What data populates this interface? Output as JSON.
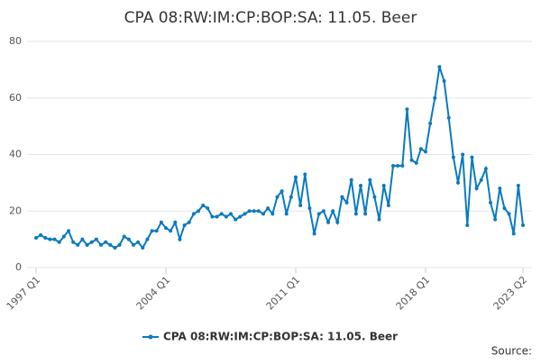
{
  "chart_data": {
    "type": "line",
    "title": "CPA 08:RW:IM:CP:BOP:SA: 11.05. Beer",
    "source": "Source:",
    "categories": [
      "1997 Q1",
      null,
      null,
      null,
      null,
      null,
      null,
      null,
      null,
      null,
      null,
      null,
      null,
      null,
      null,
      null,
      null,
      null,
      null,
      null,
      null,
      null,
      null,
      null,
      null,
      null,
      null,
      null,
      "2004 Q1",
      null,
      null,
      null,
      null,
      null,
      null,
      null,
      null,
      null,
      null,
      null,
      null,
      null,
      null,
      null,
      null,
      null,
      null,
      null,
      null,
      null,
      null,
      null,
      null,
      null,
      null,
      null,
      "2011 Q1",
      null,
      null,
      null,
      null,
      null,
      null,
      null,
      null,
      null,
      null,
      null,
      null,
      null,
      null,
      null,
      null,
      null,
      null,
      null,
      null,
      null,
      null,
      null,
      null,
      null,
      null,
      null,
      "2018 Q1",
      null,
      null,
      null,
      null,
      null,
      null,
      null,
      null,
      null,
      null,
      null,
      null,
      null,
      null,
      null,
      null,
      null,
      null,
      null,
      null,
      "2023 Q2"
    ],
    "series": [
      {
        "name": "CPA 08:RW:IM:CP:BOP:SA: 11.05. Beer",
        "color": "#0a7abf",
        "values": [
          10.5,
          11.5,
          10.5,
          10,
          10,
          9,
          11,
          13,
          9,
          8,
          10,
          8,
          9,
          10,
          8,
          9,
          8,
          7,
          8,
          11,
          10,
          8,
          9,
          7,
          10,
          13,
          13,
          16,
          14,
          13,
          16,
          10,
          15,
          16,
          19,
          20,
          22,
          21,
          18,
          18,
          19,
          18,
          19,
          17,
          18,
          19,
          20,
          20,
          20,
          19,
          21,
          19,
          25,
          27,
          19,
          25,
          32,
          22,
          33,
          21,
          12,
          19,
          20,
          16,
          20,
          16,
          25,
          23,
          31,
          19,
          29,
          19,
          31,
          25,
          17,
          29,
          22,
          36,
          36,
          36,
          56,
          38,
          37,
          42,
          41,
          51,
          60,
          71,
          66,
          53,
          39,
          30,
          40,
          15,
          39,
          28,
          31,
          35,
          23,
          17,
          28,
          21,
          19,
          12,
          29,
          15
        ]
      }
    ],
    "ylim": [
      0,
      80
    ],
    "yticks": [
      0,
      20,
      40,
      60,
      80
    ],
    "grid": true,
    "legend": "bottom"
  }
}
